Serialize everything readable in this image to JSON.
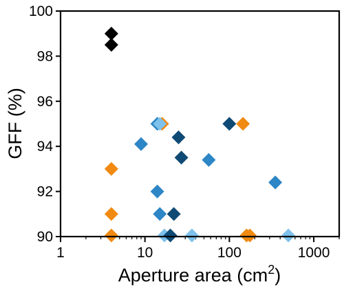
{
  "chart_data": {
    "type": "scatter",
    "xlabel": "Aperture area (cm",
    "xlabel_sup": "2",
    "xlabel_end": ")",
    "ylabel": "GFF (%)",
    "xscale": "log",
    "xlim": [
      1,
      2000
    ],
    "ylim": [
      90,
      100
    ],
    "xticks": [
      1,
      10,
      100,
      1000
    ],
    "xtick_labels": [
      "1",
      "10",
      "100",
      "1000"
    ],
    "yticks": [
      90,
      92,
      94,
      96,
      98,
      100
    ],
    "ytick_labels": [
      "90",
      "92",
      "94",
      "96",
      "98",
      "100"
    ],
    "grid": false,
    "marker": "diamond",
    "series": [
      {
        "color": "#000000",
        "points": [
          [
            4,
            99.0
          ],
          [
            4,
            98.5
          ]
        ]
      },
      {
        "color": "#f08a12",
        "points": [
          [
            4,
            93.0
          ],
          [
            4,
            91.0
          ],
          [
            4,
            90.05
          ],
          [
            16,
            95.0
          ],
          [
            145,
            95.0
          ],
          [
            160,
            90.05
          ],
          [
            175,
            90.05
          ]
        ]
      },
      {
        "color": "#2d86c5",
        "points": [
          [
            9,
            94.1
          ],
          [
            14,
            95.0
          ],
          [
            14,
            92.0
          ],
          [
            15,
            91.0
          ],
          [
            57,
            93.4
          ],
          [
            350,
            92.4
          ]
        ]
      },
      {
        "color": "#7ec1ea",
        "points": [
          [
            15,
            95.0
          ],
          [
            17,
            90.05
          ],
          [
            36,
            90.05
          ],
          [
            500,
            90.05
          ]
        ]
      },
      {
        "color": "#0f4a75",
        "points": [
          [
            20,
            90.05
          ],
          [
            22,
            91.0
          ],
          [
            25,
            94.4
          ],
          [
            27,
            93.5
          ],
          [
            100,
            95.0
          ]
        ]
      }
    ]
  }
}
